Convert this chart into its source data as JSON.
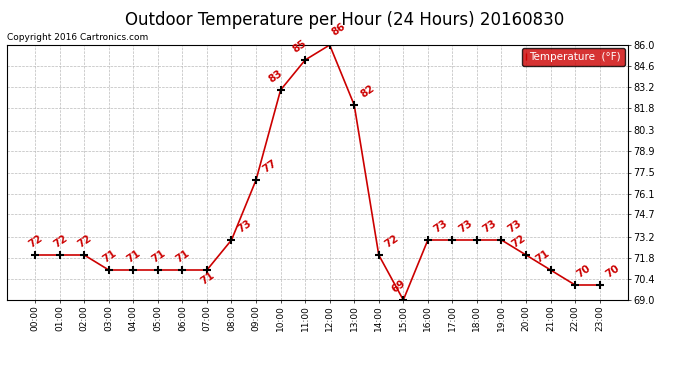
{
  "title": "Outdoor Temperature per Hour (24 Hours) 20160830",
  "copyright": "Copyright 2016 Cartronics.com",
  "legend_label": "Temperature  (°F)",
  "hours": [
    "00:00",
    "01:00",
    "02:00",
    "03:00",
    "04:00",
    "05:00",
    "06:00",
    "07:00",
    "08:00",
    "09:00",
    "10:00",
    "11:00",
    "12:00",
    "13:00",
    "14:00",
    "15:00",
    "16:00",
    "17:00",
    "18:00",
    "19:00",
    "20:00",
    "21:00",
    "22:00",
    "23:00"
  ],
  "temps": [
    72,
    72,
    72,
    71,
    71,
    71,
    71,
    71,
    73,
    77,
    83,
    85,
    86,
    82,
    72,
    69,
    73,
    73,
    73,
    73,
    72,
    71,
    70,
    70
  ],
  "ylim": [
    69.0,
    86.0
  ],
  "yticks": [
    69.0,
    70.4,
    71.8,
    73.2,
    74.7,
    76.1,
    77.5,
    78.9,
    80.3,
    81.8,
    83.2,
    84.6,
    86.0
  ],
  "line_color": "#cc0000",
  "marker_color": "#000000",
  "bg_color": "#ffffff",
  "grid_color": "#bbbbbb",
  "title_fontsize": 12,
  "legend_bg": "#cc0000",
  "legend_text_color": "#ffffff"
}
